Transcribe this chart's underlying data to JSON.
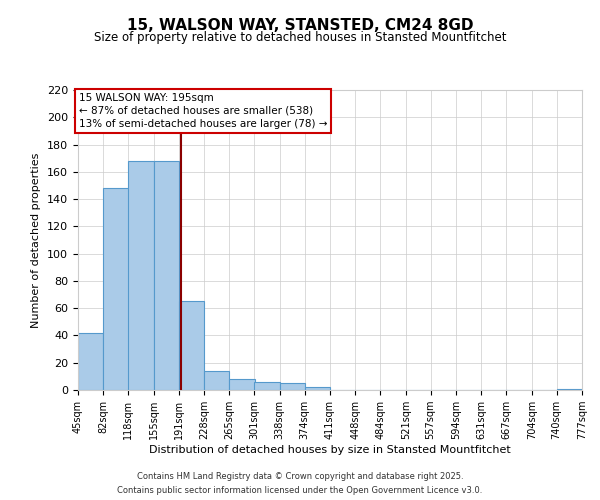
{
  "title": "15, WALSON WAY, STANSTED, CM24 8GD",
  "subtitle": "Size of property relative to detached houses in Stansted Mountfitchet",
  "xlabel": "Distribution of detached houses by size in Stansted Mountfitchet",
  "ylabel": "Number of detached properties",
  "bins": [
    45,
    82,
    118,
    155,
    191,
    228,
    265,
    301,
    338,
    374,
    411,
    448,
    484,
    521,
    557,
    594,
    631,
    667,
    704,
    740,
    777
  ],
  "counts": [
    42,
    148,
    168,
    168,
    65,
    14,
    8,
    6,
    5,
    2,
    0,
    0,
    0,
    0,
    0,
    0,
    0,
    0,
    0,
    1
  ],
  "bar_color": "#aacbe8",
  "bar_edge_color": "#5599cc",
  "property_line_x": 195,
  "property_line_color": "#8b0000",
  "annotation_title": "15 WALSON WAY: 195sqm",
  "annotation_line1": "← 87% of detached houses are smaller (538)",
  "annotation_line2": "13% of semi-detached houses are larger (78) →",
  "annotation_box_color": "#ffffff",
  "annotation_box_edge_color": "#cc0000",
  "ylim": [
    0,
    220
  ],
  "yticks": [
    0,
    20,
    40,
    60,
    80,
    100,
    120,
    140,
    160,
    180,
    200,
    220
  ],
  "tick_labels": [
    "45sqm",
    "82sqm",
    "118sqm",
    "155sqm",
    "191sqm",
    "228sqm",
    "265sqm",
    "301sqm",
    "338sqm",
    "374sqm",
    "411sqm",
    "448sqm",
    "484sqm",
    "521sqm",
    "557sqm",
    "594sqm",
    "631sqm",
    "667sqm",
    "704sqm",
    "740sqm",
    "777sqm"
  ],
  "footer1": "Contains HM Land Registry data © Crown copyright and database right 2025.",
  "footer2": "Contains public sector information licensed under the Open Government Licence v3.0.",
  "background_color": "#ffffff",
  "grid_color": "#cccccc",
  "figsize": [
    6.0,
    5.0
  ],
  "dpi": 100,
  "title_fontsize": 11,
  "subtitle_fontsize": 8.5,
  "xlabel_fontsize": 8,
  "ylabel_fontsize": 8,
  "tick_fontsize": 7,
  "annotation_fontsize": 7.5,
  "footer_fontsize": 6
}
